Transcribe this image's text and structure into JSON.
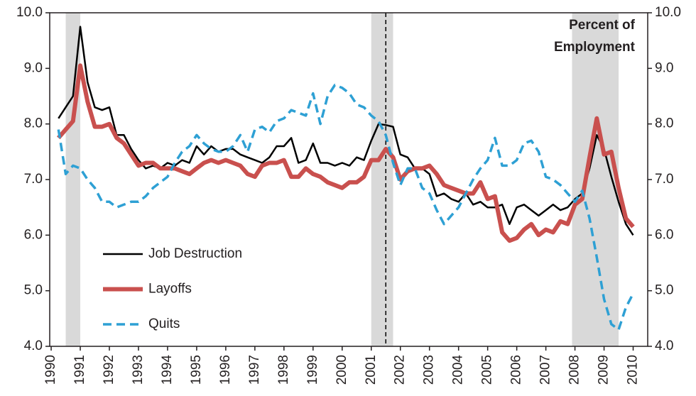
{
  "chart_data": {
    "type": "line",
    "annotation_lines": [
      "Percent of",
      "Employment"
    ],
    "x": [
      1990.25,
      1990.5,
      1990.75,
      1991,
      1991.25,
      1991.5,
      1991.75,
      1992,
      1992.25,
      1992.5,
      1992.75,
      1993,
      1993.25,
      1993.5,
      1993.75,
      1994,
      1994.25,
      1994.5,
      1994.75,
      1995,
      1995.25,
      1995.5,
      1995.75,
      1996,
      1996.25,
      1996.5,
      1996.75,
      1997,
      1997.25,
      1997.5,
      1997.75,
      1998,
      1998.25,
      1998.5,
      1998.75,
      1999,
      1999.25,
      1999.5,
      1999.75,
      2000,
      2000.25,
      2000.5,
      2000.75,
      2001,
      2001.25,
      2001.5,
      2001.75,
      2002,
      2002.25,
      2002.5,
      2002.75,
      2003,
      2003.25,
      2003.5,
      2003.75,
      2004,
      2004.25,
      2004.5,
      2004.75,
      2005,
      2005.25,
      2005.5,
      2005.75,
      2006,
      2006.25,
      2006.5,
      2006.75,
      2007,
      2007.25,
      2007.5,
      2007.75,
      2008,
      2008.25,
      2008.5,
      2008.75,
      2009,
      2009.25,
      2009.5,
      2009.75,
      2010
    ],
    "series": [
      {
        "name": "Job Destruction",
        "color": "#000000",
        "width": 2.5,
        "dashed": false,
        "values": [
          8.1,
          8.3,
          8.5,
          9.75,
          8.75,
          8.3,
          8.25,
          8.3,
          7.8,
          7.8,
          7.55,
          7.35,
          7.2,
          7.25,
          7.2,
          7.3,
          7.25,
          7.35,
          7.3,
          7.6,
          7.45,
          7.6,
          7.5,
          7.55,
          7.55,
          7.45,
          7.4,
          7.35,
          7.3,
          7.4,
          7.6,
          7.6,
          7.75,
          7.3,
          7.35,
          7.65,
          7.3,
          7.3,
          7.25,
          7.3,
          7.25,
          7.4,
          7.35,
          7.7,
          8.0,
          7.98,
          7.95,
          7.45,
          7.4,
          7.2,
          7.2,
          7.1,
          6.7,
          6.75,
          6.65,
          6.6,
          6.75,
          6.55,
          6.6,
          6.5,
          6.5,
          6.55,
          6.2,
          6.5,
          6.55,
          6.45,
          6.35,
          6.45,
          6.55,
          6.45,
          6.5,
          6.65,
          6.75,
          7.2,
          7.8,
          7.55,
          7.05,
          6.6,
          6.2,
          6.0
        ]
      },
      {
        "name": "Layoffs",
        "color": "#c9504e",
        "width": 6,
        "dashed": false,
        "values": [
          7.75,
          7.9,
          8.05,
          9.05,
          8.4,
          7.95,
          7.95,
          8.0,
          7.75,
          7.65,
          7.45,
          7.25,
          7.3,
          7.3,
          7.2,
          7.2,
          7.2,
          7.15,
          7.1,
          7.2,
          7.3,
          7.35,
          7.3,
          7.35,
          7.3,
          7.25,
          7.1,
          7.05,
          7.25,
          7.3,
          7.3,
          7.35,
          7.05,
          7.05,
          7.2,
          7.1,
          7.05,
          6.95,
          6.9,
          6.85,
          6.95,
          6.95,
          7.05,
          7.35,
          7.35,
          7.55,
          7.4,
          7.0,
          7.15,
          7.2,
          7.2,
          7.25,
          7.1,
          6.9,
          6.85,
          6.8,
          6.75,
          6.75,
          6.95,
          6.65,
          6.7,
          6.05,
          5.9,
          5.95,
          6.1,
          6.2,
          6.0,
          6.1,
          6.05,
          6.25,
          6.2,
          6.55,
          6.65,
          7.4,
          8.1,
          7.45,
          7.5,
          6.85,
          6.3,
          6.15
        ]
      },
      {
        "name": "Quits",
        "color": "#2ea0d4",
        "width": 3.5,
        "dashed": true,
        "axis": "y2",
        "values": [
          7.9,
          7.1,
          7.25,
          7.2,
          7.0,
          6.85,
          6.6,
          6.6,
          6.5,
          6.55,
          6.6,
          6.6,
          6.7,
          6.85,
          6.95,
          7.05,
          7.3,
          7.5,
          7.6,
          7.8,
          7.65,
          7.55,
          7.5,
          7.5,
          7.6,
          7.8,
          7.5,
          7.9,
          7.95,
          7.85,
          8.05,
          8.1,
          8.25,
          8.2,
          8.15,
          8.55,
          8.0,
          8.5,
          8.7,
          8.65,
          8.55,
          8.35,
          8.3,
          8.15,
          8.05,
          7.8,
          7.3,
          6.9,
          7.2,
          7.2,
          6.85,
          6.75,
          6.45,
          6.2,
          6.35,
          6.5,
          6.75,
          7.0,
          7.2,
          7.35,
          7.75,
          7.25,
          7.25,
          7.35,
          7.65,
          7.7,
          7.5,
          7.05,
          7.0,
          6.9,
          6.75,
          6.6,
          6.8,
          6.3,
          5.6,
          4.85,
          4.4,
          4.3,
          4.7,
          4.95
        ]
      }
    ],
    "shaded_periods": [
      [
        1990.5,
        1991.0
      ],
      [
        2001.0,
        2001.75
      ],
      [
        2007.9,
        2009.5
      ]
    ],
    "dashed_vline": 2001.5,
    "xlim": [
      1989.95,
      2010.5
    ],
    "xticks": [
      1990,
      1991,
      1992,
      1993,
      1994,
      1995,
      1996,
      1997,
      1998,
      1999,
      2000,
      2001,
      2002,
      2003,
      2004,
      2005,
      2006,
      2007,
      2008,
      2009,
      2010
    ],
    "ylim": [
      4,
      10
    ],
    "yticks": [
      {
        "value": 4,
        "label": "4.0"
      },
      {
        "value": 5,
        "label": "5.0"
      },
      {
        "value": 6,
        "label": "6.0"
      },
      {
        "value": 7,
        "label": "7.0"
      },
      {
        "value": 8,
        "label": "8.0"
      },
      {
        "value": 9,
        "label": "9.0"
      },
      {
        "value": 10,
        "label": "10.0"
      }
    ],
    "y2lim": [
      4,
      10
    ],
    "y2ticks": [
      {
        "value": 4,
        "label": "4.0"
      },
      {
        "value": 5,
        "label": "5.0"
      },
      {
        "value": 6,
        "label": "6.0"
      },
      {
        "value": 7,
        "label": "7.0"
      },
      {
        "value": 8,
        "label": "8.0"
      },
      {
        "value": 9,
        "label": "9.0"
      },
      {
        "value": 10,
        "label": "10.0"
      }
    ],
    "legend": "lower-left"
  }
}
